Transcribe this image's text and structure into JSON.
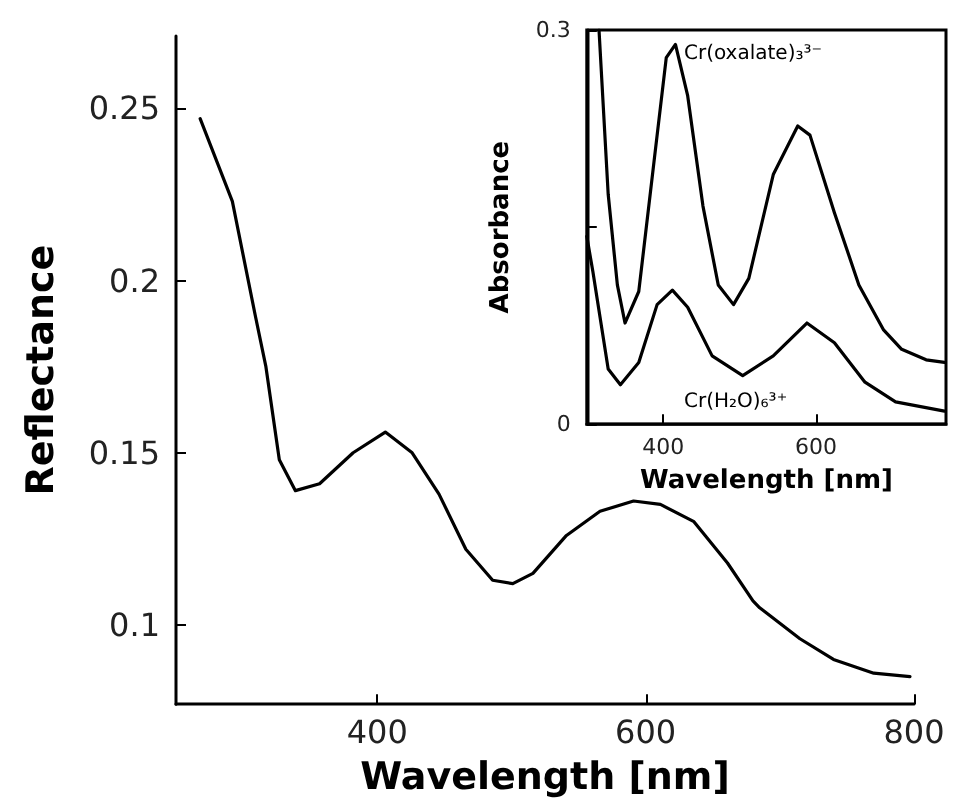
{
  "chart_data": [
    {
      "type": "line",
      "xlabel": "Wavelength [nm]",
      "ylabel": "Reflectance",
      "xlim": [
        250,
        800
      ],
      "xticks": [
        400,
        600,
        800
      ],
      "ylim": [
        0.077,
        0.271
      ],
      "yticks": [
        0.1,
        0.15,
        0.2,
        0.25
      ],
      "grid": false,
      "legend": false,
      "marker": "none",
      "line_style": "solid",
      "series": [
        {
          "color": "#000000",
          "x": [
            268,
            292,
            309,
            317,
            327,
            339,
            357,
            382,
            406,
            426,
            446,
            466,
            486,
            501,
            516,
            541,
            566,
            591,
            611,
            636,
            661,
            680,
            685,
            715,
            740,
            770,
            797
          ],
          "values": [
            0.247,
            0.223,
            0.19,
            0.175,
            0.148,
            0.139,
            0.141,
            0.15,
            0.156,
            0.15,
            0.138,
            0.122,
            0.113,
            0.112,
            0.115,
            0.126,
            0.133,
            0.136,
            0.135,
            0.13,
            0.118,
            0.107,
            0.105,
            0.096,
            0.09,
            0.086,
            0.085
          ]
        }
      ]
    },
    {
      "type": "line",
      "xlabel": "Wavelength [nm]",
      "ylabel": "Absorbance",
      "xlim": [
        300,
        770
      ],
      "xticks": [
        400,
        600
      ],
      "ylim": [
        0,
        0.3
      ],
      "yticks": [
        0,
        {
          "value": 0.15,
          "label": null
        },
        0.3
      ],
      "grid": false,
      "legend": false,
      "marker": "none",
      "line_style": "solid",
      "series": [
        {
          "name": "Cr(oxalate)₃³⁻",
          "color": "#000000",
          "x": [
            316,
            328,
            340,
            350,
            368,
            388,
            404,
            416,
            432,
            452,
            472,
            492,
            512,
            544,
            576,
            592,
            624,
            656,
            688,
            712,
            744,
            768
          ],
          "values": [
            0.3,
            0.175,
            0.106,
            0.077,
            0.101,
            0.2,
            0.279,
            0.289,
            0.25,
            0.166,
            0.106,
            0.091,
            0.111,
            0.19,
            0.227,
            0.22,
            0.161,
            0.106,
            0.072,
            0.057,
            0.049,
            0.047
          ]
        },
        {
          "name": "Cr(H₂O)₆³⁺",
          "color": "#000000",
          "x": [
            300,
            308,
            328,
            344,
            368,
            392,
            412,
            432,
            464,
            504,
            544,
            588,
            624,
            664,
            704,
            768
          ],
          "values": [
            0.143,
            0.116,
            0.042,
            0.03,
            0.047,
            0.091,
            0.102,
            0.089,
            0.052,
            0.037,
            0.052,
            0.077,
            0.062,
            0.032,
            0.017,
            0.01
          ]
        }
      ]
    }
  ]
}
